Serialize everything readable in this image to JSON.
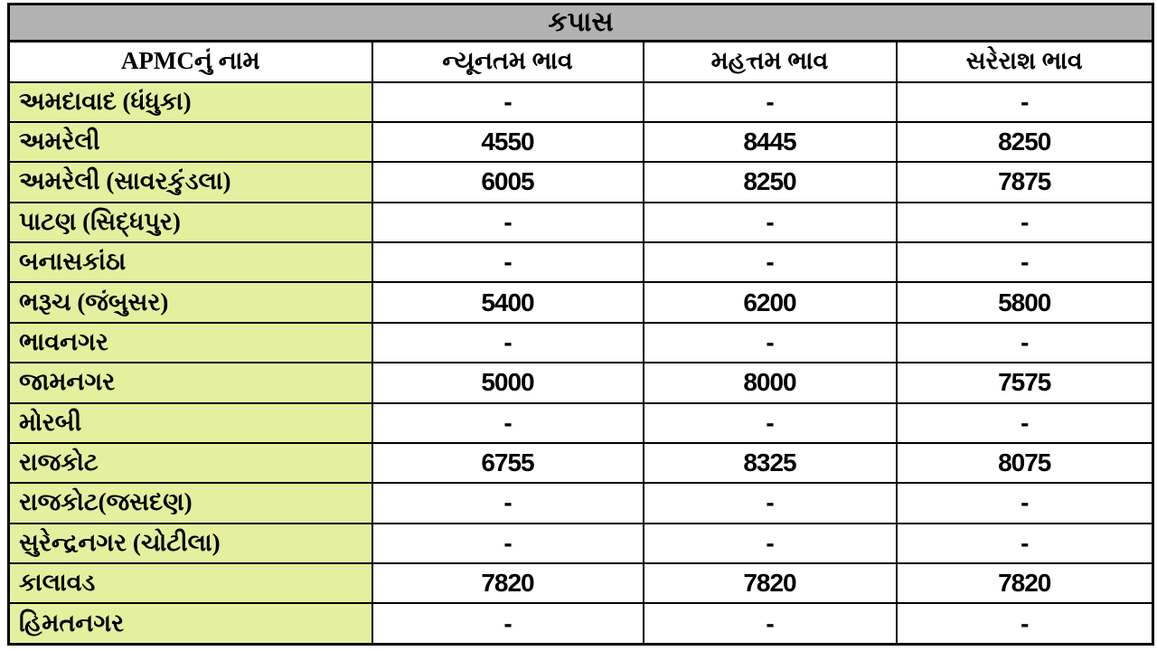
{
  "chart_data": {
    "type": "table",
    "title": "કપાસ",
    "columns": [
      "APMCનું નામ",
      "ન્યૂનતમ ભાવ",
      "મહત્તમ ભાવ",
      "સરેરાશ ભાવ"
    ],
    "rows": [
      {
        "name": "અમદાવાદ (ધંધુકા)",
        "min": "-",
        "max": "-",
        "avg": "-"
      },
      {
        "name": "અમરેલી",
        "min": "4550",
        "max": "8445",
        "avg": "8250"
      },
      {
        "name": "અમરેલી (સાવરકુંડલા)",
        "min": "6005",
        "max": "8250",
        "avg": "7875"
      },
      {
        "name": "પાટણ (સિદ્ધપુર)",
        "min": "-",
        "max": "-",
        "avg": "-"
      },
      {
        "name": "બનાસકાંઠા",
        "min": "-",
        "max": "-",
        "avg": "-"
      },
      {
        "name": "ભરૂચ (જંબુસર)",
        "min": "5400",
        "max": "6200",
        "avg": "5800"
      },
      {
        "name": "ભાવનગર",
        "min": "-",
        "max": "-",
        "avg": "-"
      },
      {
        "name": "જામનગર",
        "min": "5000",
        "max": "8000",
        "avg": "7575"
      },
      {
        "name": "મોરબી",
        "min": "-",
        "max": "-",
        "avg": "-"
      },
      {
        "name": "રાજકોટ",
        "min": "6755",
        "max": "8325",
        "avg": "8075"
      },
      {
        "name": "રાજકોટ(જસદણ)",
        "min": "-",
        "max": "-",
        "avg": "-"
      },
      {
        "name": "સુરેન્દ્રનગર (ચોટીલા)",
        "min": "-",
        "max": "-",
        "avg": "-"
      },
      {
        "name": "કાલાવડ",
        "min": "7820",
        "max": "7820",
        "avg": "7820"
      },
      {
        "name": "હિમતનગર",
        "min": "-",
        "max": "-",
        "avg": "-"
      }
    ],
    "layout_hints": {
      "legend": "none",
      "grid": "table-borders"
    },
    "colors": {
      "title_bg": "#B2B2B2",
      "name_column_bg": "#E4F09E",
      "value_cell_bg": "#FFFFFF",
      "border": "#000000",
      "text": "#000000"
    }
  }
}
